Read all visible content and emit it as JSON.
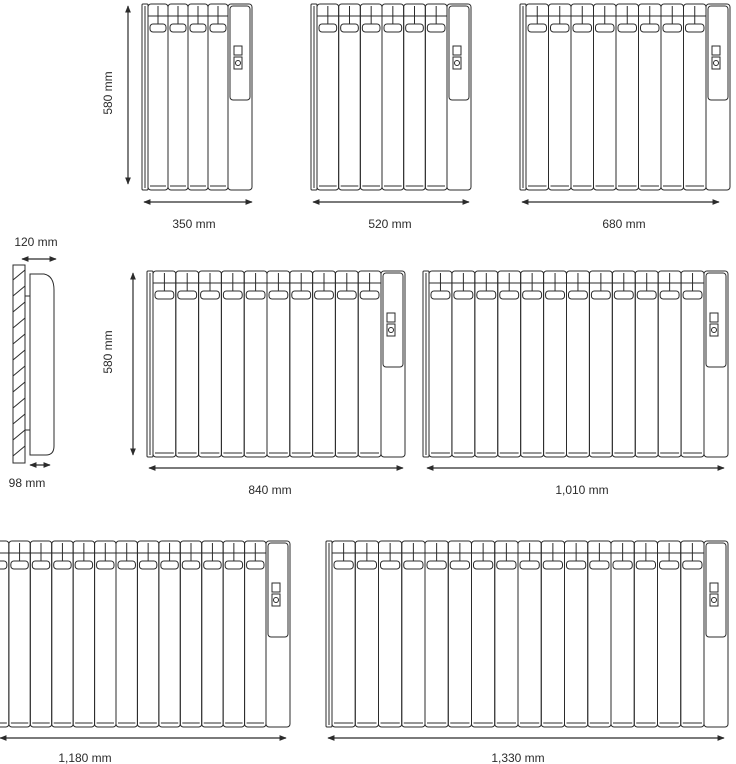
{
  "height_label": "580 mm",
  "depth_labels": {
    "top": "120 mm",
    "bottom": "98 mm"
  },
  "radiators": [
    {
      "width_label": "350 mm",
      "fins": 4
    },
    {
      "width_label": "520 mm",
      "fins": 6
    },
    {
      "width_label": "680 mm",
      "fins": 8
    },
    {
      "width_label": "840 mm",
      "fins": 10
    },
    {
      "width_label": "1,010 mm",
      "fins": 12
    },
    {
      "width_label": "1,180 mm",
      "fins": 14
    },
    {
      "width_label": "1,330 mm",
      "fins": 16
    }
  ],
  "colors": {
    "line": "#2b2b2b",
    "fill": "#ffffff"
  }
}
